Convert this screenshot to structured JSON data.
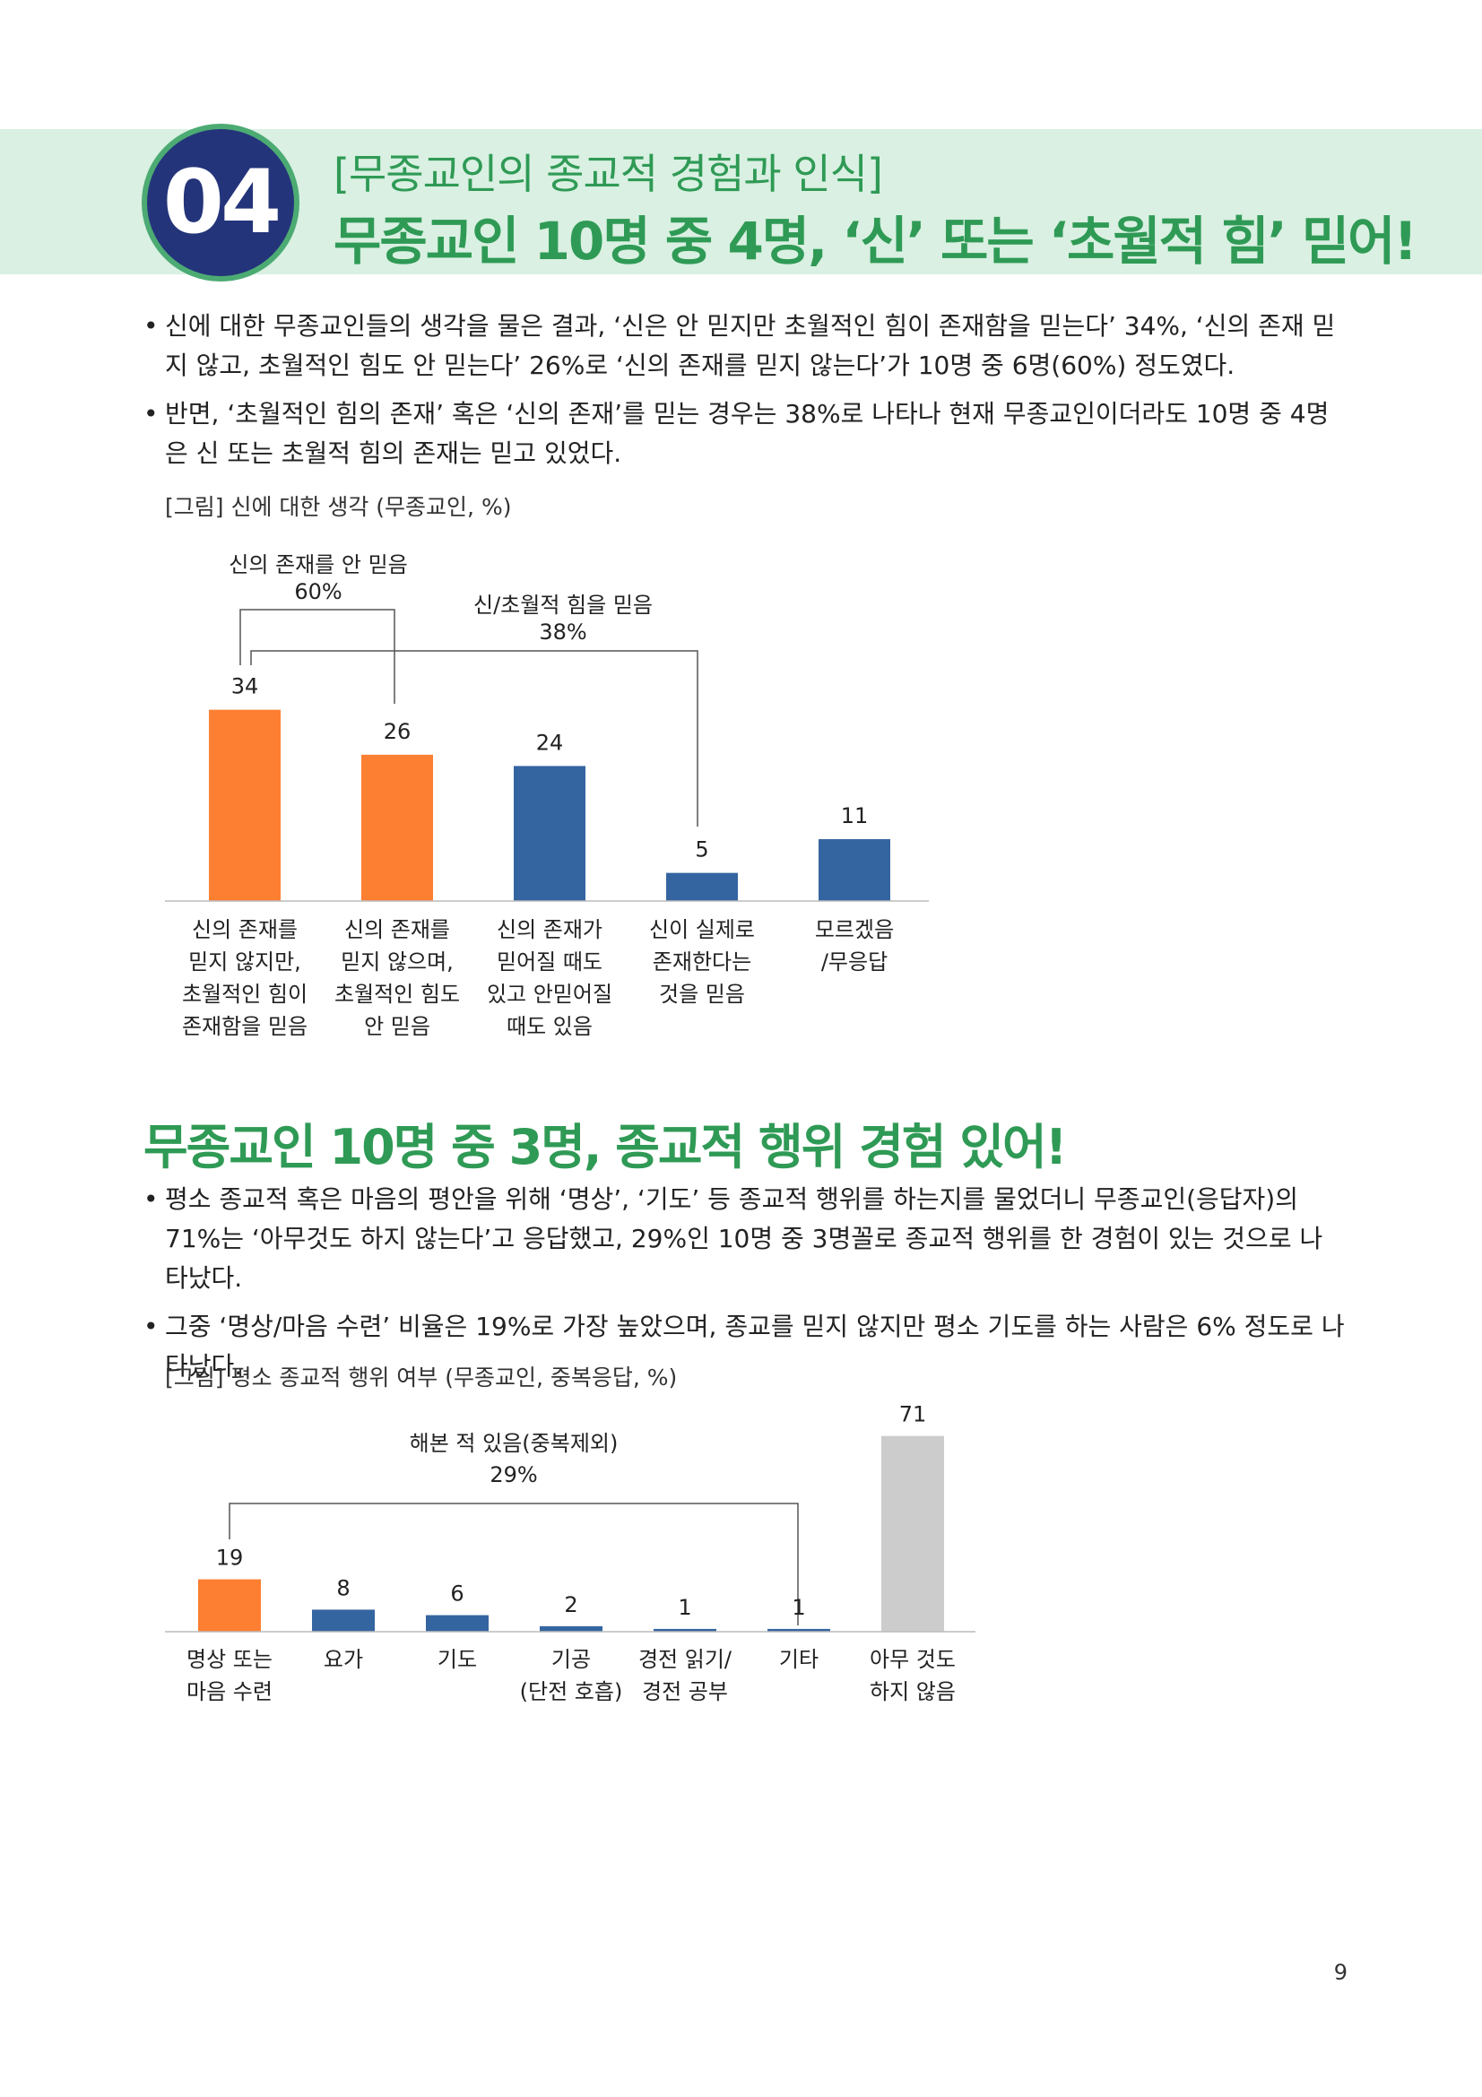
{
  "header": {
    "badge_number": "04",
    "subtitle": "[무종교인의 종교적 경험과 인식]",
    "title": "무종교인 10명 중 4명, ‘신’ 또는 ‘초월적 힘’ 믿어!"
  },
  "section1": {
    "bullets": [
      "신에 대한 무종교인들의 생각을 물은 결과, ‘신은 안 믿지만 초월적인 힘이 존재함을 믿는다’ 34%, ‘신의 존재 믿지 않고, 초월적인 힘도 안 믿는다’ 26%로 ‘신의 존재를 믿지 않는다’가 10명 중 6명(60%) 정도였다.",
      "반면, ‘초월적인 힘의 존재’ 혹은 ‘신의 존재’를 믿는 경우는 38%로 나타나 현재 무종교인이더라도 10명 중 4명은 신 또는 초월적 힘의 존재는 믿고 있었다."
    ],
    "figure_caption": "[그림] 신에 대한 생각 (무종교인, %)"
  },
  "section2": {
    "title": "무종교인 10명 중 3명, 종교적 행위 경험 있어!",
    "bullets": [
      "평소 종교적 혹은 마음의 평안을 위해 ‘명상’, ‘기도’ 등 종교적 행위를 하는지를 물었더니 무종교인(응답자)의 71%는 ‘아무것도 하지 않는다’고 응답했고, 29%인 10명 중 3명꼴로 종교적 행위를 한 경험이 있는 것으로 나타났다.",
      "그중 ‘명상/마음 수련’ 비율은 19%로 가장 높았으며, 종교를 믿지 않지만 평소 기도를 하는 사람은 6% 정도로 나타났다."
    ],
    "figure_caption": "[그림] 평소 종교적 행위 여부 (무종교인, 중복응답, %)"
  },
  "page_number": "9",
  "colors": {
    "green": "#2f9a55",
    "navy": "#24347a",
    "orange": "#fd7f32",
    "blue": "#3565a1",
    "gray": "#cccccc"
  },
  "chart_data": [
    {
      "type": "bar",
      "categories": [
        [
          "신의 존재를",
          "믿지 않지만,",
          "초월적인 힘이",
          "존재함을 믿음"
        ],
        [
          "신의 존재를",
          "믿지 않으며,",
          "초월적인 힘도",
          "안 믿음"
        ],
        [
          "신의 존재가",
          "믿어질 때도",
          "있고 안믿어질",
          "때도 있음"
        ],
        [
          "신이 실제로",
          "존재한다는",
          "것을 믿음"
        ],
        [
          "모르겠음",
          "/무응답"
        ]
      ],
      "values": [
        34,
        26,
        24,
        5,
        11
      ],
      "colors": [
        "#fd7f32",
        "#fd7f32",
        "#3565a1",
        "#3565a1",
        "#3565a1"
      ],
      "ylim": [
        0,
        40
      ],
      "annotations": [
        {
          "label": "신의 존재를 안 믿음",
          "value": "60%"
        },
        {
          "label": "신/초월적 힘을 믿음",
          "value": "38%"
        }
      ]
    },
    {
      "type": "bar",
      "categories": [
        [
          "명상 또는",
          "마음 수련"
        ],
        [
          "요가"
        ],
        [
          "기도"
        ],
        [
          "기공",
          "(단전 호흡)"
        ],
        [
          "경전 읽기/",
          "경전 공부"
        ],
        [
          "기타"
        ],
        [
          "아무 것도",
          "하지 않음"
        ]
      ],
      "values": [
        19,
        8,
        6,
        2,
        1,
        1,
        71
      ],
      "colors": [
        "#fd7f32",
        "#3565a1",
        "#3565a1",
        "#3565a1",
        "#3565a1",
        "#3565a1",
        "#cccccc"
      ],
      "ylim": [
        0,
        80
      ],
      "annotations": [
        {
          "label": "해본 적 있음(중복제외)",
          "value": "29%"
        }
      ]
    }
  ]
}
